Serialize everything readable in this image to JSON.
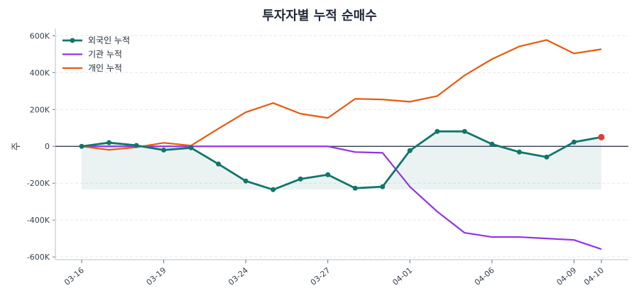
{
  "chart_data": {
    "type": "line",
    "title": "투자자별 누적 순매수",
    "xlabel": "",
    "ylabel": "주",
    "x": [
      "03-16",
      "03-17",
      "03-18",
      "03-19",
      "03-20",
      "03-23",
      "03-24",
      "03-25",
      "03-26",
      "03-27",
      "03-30",
      "03-31",
      "04-01",
      "04-02",
      "04-03",
      "04-06",
      "04-07",
      "04-08",
      "04-09",
      "04-10"
    ],
    "xticks": [
      "03-16",
      "03-19",
      "03-24",
      "03-27",
      "04-01",
      "04-06",
      "04-09",
      "04-10"
    ],
    "yticks": [
      600000,
      400000,
      200000,
      0,
      -200000,
      -400000,
      -600000
    ],
    "ytick_labels": [
      "600K",
      "400K",
      "200K",
      "0",
      "-200K",
      "-400K",
      "-600K"
    ],
    "ylim": [
      -615000,
      640000
    ],
    "grid": "horizontal dashed",
    "legend": "top-left",
    "series": [
      {
        "name": "외국인 누적",
        "color": "#11766a",
        "marker": true,
        "fill_to_min": true,
        "values": [
          0,
          20000,
          5000,
          -20000,
          -8000,
          -96000,
          -188000,
          -235000,
          -177000,
          -154000,
          -227000,
          -219000,
          -23000,
          81000,
          81000,
          12000,
          -31000,
          -58000,
          23000,
          50000
        ]
      },
      {
        "name": "기관 누적",
        "color": "#9333ea",
        "marker": false,
        "values": [
          0,
          0,
          0,
          0,
          0,
          0,
          0,
          0,
          0,
          0,
          -31000,
          -35000,
          -219000,
          -354000,
          -469000,
          -492000,
          -492000,
          -500000,
          -508000,
          -558000
        ]
      },
      {
        "name": "개인 누적",
        "color": "#e8590c",
        "marker": false,
        "values": [
          0,
          -19000,
          -5000,
          19000,
          4000,
          96000,
          185000,
          235000,
          177000,
          154000,
          258000,
          254000,
          242000,
          273000,
          385000,
          473000,
          542000,
          577000,
          504000,
          527000
        ]
      }
    ],
    "last_point_color": "#e53935"
  }
}
